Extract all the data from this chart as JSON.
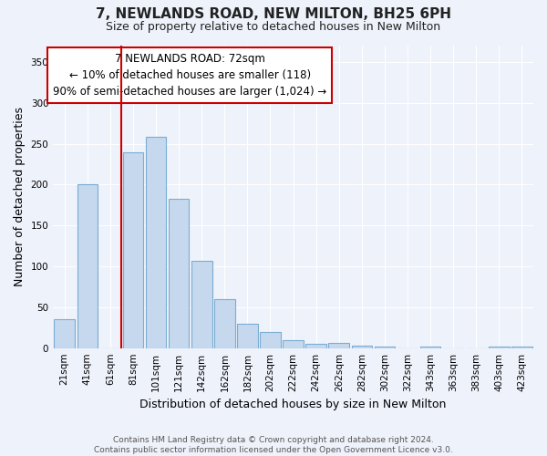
{
  "title1": "7, NEWLANDS ROAD, NEW MILTON, BH25 6PH",
  "title2": "Size of property relative to detached houses in New Milton",
  "xlabel": "Distribution of detached houses by size in New Milton",
  "ylabel": "Number of detached properties",
  "categories": [
    "21sqm",
    "41sqm",
    "61sqm",
    "81sqm",
    "101sqm",
    "121sqm",
    "142sqm",
    "162sqm",
    "182sqm",
    "202sqm",
    "222sqm",
    "242sqm",
    "262sqm",
    "282sqm",
    "302sqm",
    "322sqm",
    "343sqm",
    "363sqm",
    "383sqm",
    "403sqm",
    "423sqm"
  ],
  "values": [
    35,
    200,
    0,
    240,
    258,
    183,
    107,
    60,
    30,
    20,
    10,
    5,
    6,
    3,
    2,
    0,
    2,
    0,
    0,
    2,
    2
  ],
  "bar_color": "#c5d8ed",
  "bar_edge_color": "#7aadd4",
  "vline_x": 2.5,
  "vline_color": "#cc0000",
  "annotation_title": "7 NEWLANDS ROAD: 72sqm",
  "annotation_line1": "← 10% of detached houses are smaller (118)",
  "annotation_line2": "90% of semi-detached houses are larger (1,024) →",
  "annotation_box_color": "white",
  "annotation_box_edge": "#cc0000",
  "ylim": [
    0,
    370
  ],
  "yticks": [
    0,
    50,
    100,
    150,
    200,
    250,
    300,
    350
  ],
  "footer1": "Contains HM Land Registry data © Crown copyright and database right 2024.",
  "footer2": "Contains public sector information licensed under the Open Government Licence v3.0.",
  "bg_color": "#eef2fb",
  "grid_color": "#ffffff",
  "title1_fontsize": 11,
  "title2_fontsize": 9,
  "ylabel_fontsize": 9,
  "xlabel_fontsize": 9,
  "tick_fontsize": 7.5,
  "annotation_fontsize": 8.5,
  "footer_fontsize": 6.5
}
